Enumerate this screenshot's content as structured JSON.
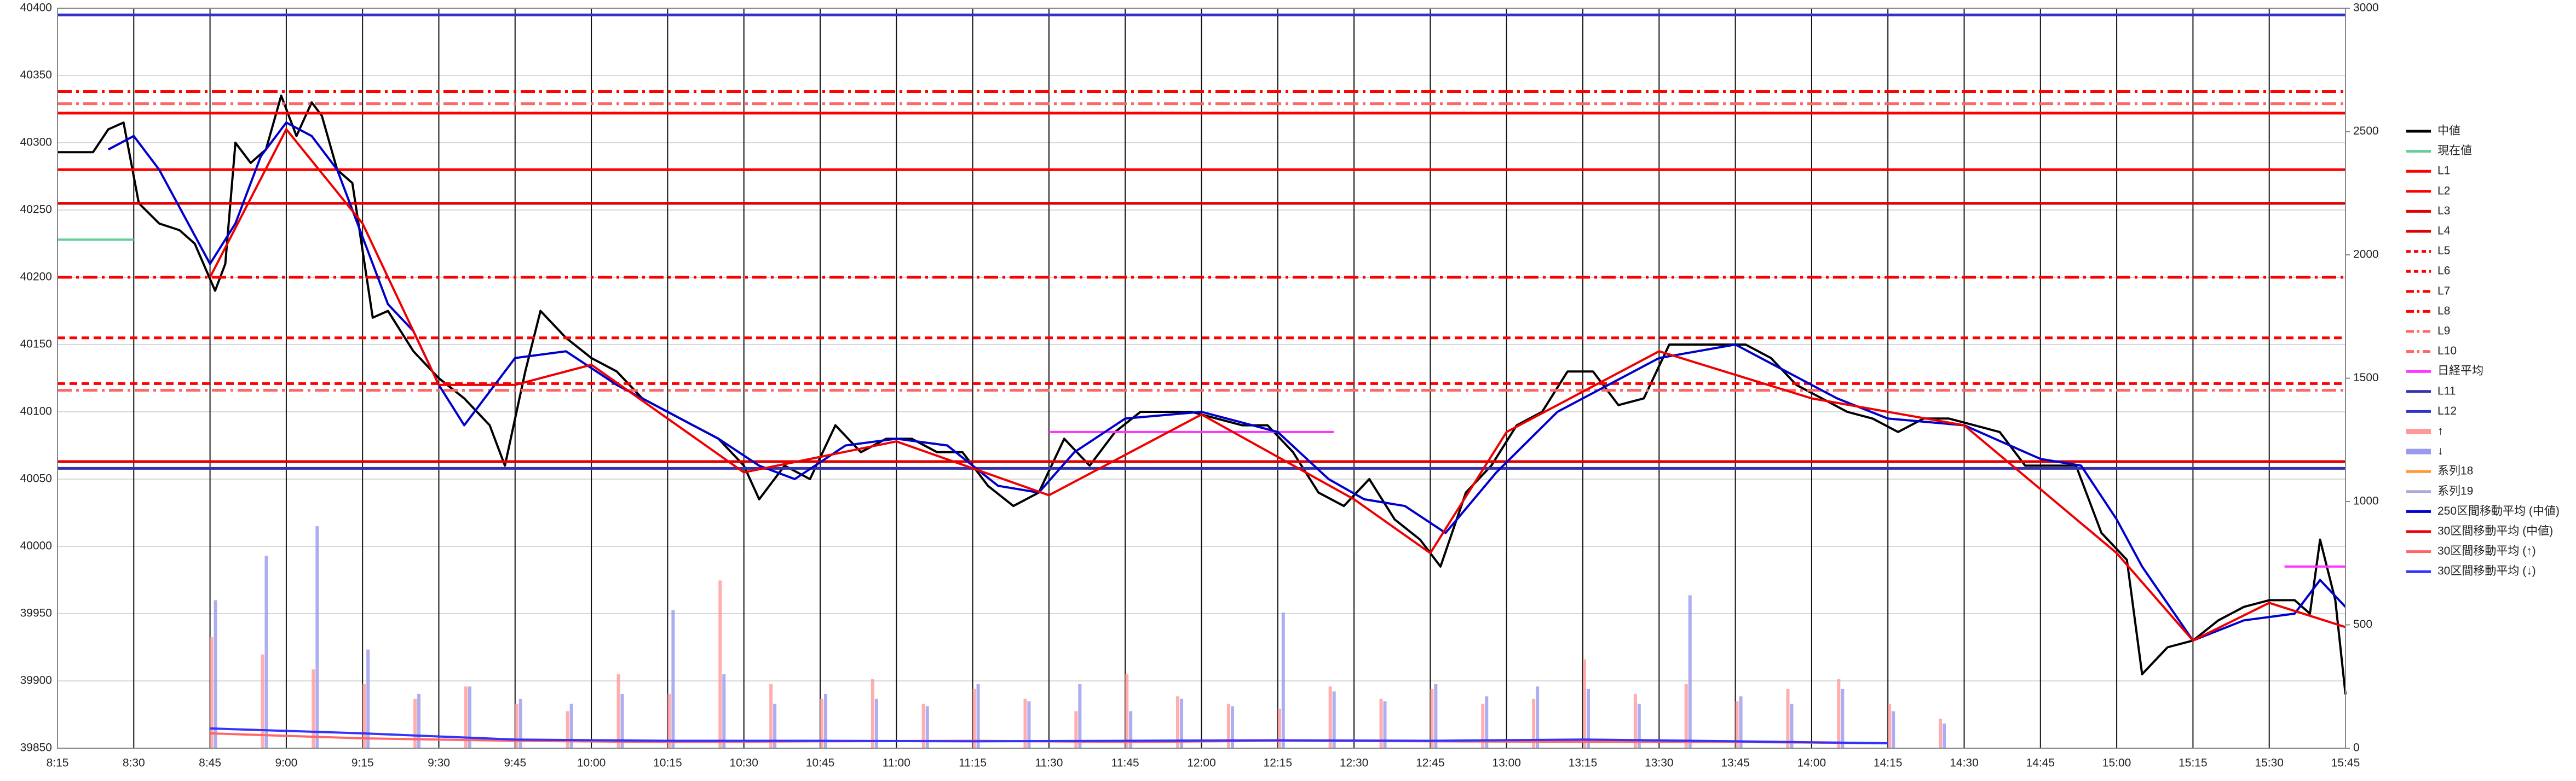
{
  "chart_data": {
    "type": "line",
    "xlim": [
      495,
      945
    ],
    "xticks": [
      {
        "value": 495,
        "label": "8:15"
      },
      {
        "value": 510,
        "label": "8:30"
      },
      {
        "value": 525,
        "label": "8:45"
      },
      {
        "value": 540,
        "label": "9:00"
      },
      {
        "value": 555,
        "label": "9:15"
      },
      {
        "value": 570,
        "label": "9:30"
      },
      {
        "value": 585,
        "label": "9:45"
      },
      {
        "value": 600,
        "label": "10:00"
      },
      {
        "value": 615,
        "label": "10:15"
      },
      {
        "value": 630,
        "label": "10:30"
      },
      {
        "value": 645,
        "label": "10:45"
      },
      {
        "value": 660,
        "label": "11:00"
      },
      {
        "value": 675,
        "label": "11:15"
      },
      {
        "value": 690,
        "label": "11:30"
      },
      {
        "value": 705,
        "label": "11:45"
      },
      {
        "value": 720,
        "label": "12:00"
      },
      {
        "value": 735,
        "label": "12:15"
      },
      {
        "value": 750,
        "label": "12:30"
      },
      {
        "value": 765,
        "label": "12:45"
      },
      {
        "value": 780,
        "label": "13:00"
      },
      {
        "value": 795,
        "label": "13:15"
      },
      {
        "value": 810,
        "label": "13:30"
      },
      {
        "value": 825,
        "label": "13:45"
      },
      {
        "value": 840,
        "label": "14:00"
      },
      {
        "value": 855,
        "label": "14:15"
      },
      {
        "value": 870,
        "label": "14:30"
      },
      {
        "value": 885,
        "label": "14:45"
      },
      {
        "value": 900,
        "label": "15:00"
      },
      {
        "value": 915,
        "label": "15:15"
      },
      {
        "value": 930,
        "label": "15:30"
      },
      {
        "value": 945,
        "label": "15:45"
      }
    ],
    "ylim": [
      39850,
      40400
    ],
    "yticks": [
      39850,
      39900,
      39950,
      40000,
      40050,
      40100,
      40150,
      40200,
      40250,
      40300,
      40350,
      40400
    ],
    "y2lim": [
      0,
      3000
    ],
    "y2ticks": [
      0,
      500,
      1000,
      1500,
      2000,
      2500,
      3000
    ],
    "grid": true,
    "legend": "right",
    "series": [
      {
        "name": "中値",
        "color": "#000000",
        "kind": "line",
        "style": "solid",
        "x": [
          495,
          502,
          505,
          508,
          511,
          515,
          519,
          522,
          526,
          528,
          530,
          533,
          536,
          539,
          542,
          545,
          547,
          550,
          553,
          555,
          557,
          560,
          565,
          570,
          575,
          580,
          583,
          587,
          590,
          595,
          600,
          605,
          610,
          615,
          620,
          625,
          630,
          633,
          638,
          643,
          648,
          653,
          658,
          663,
          668,
          673,
          678,
          683,
          688,
          693,
          698,
          703,
          708,
          713,
          718,
          723,
          728,
          733,
          738,
          743,
          748,
          753,
          758,
          763,
          767,
          772,
          777,
          782,
          787,
          792,
          797,
          802,
          807,
          812,
          817,
          822,
          827,
          832,
          837,
          842,
          847,
          852,
          857,
          862,
          867,
          872,
          877,
          882,
          887,
          892,
          897,
          902,
          905,
          910,
          915,
          920,
          925,
          930,
          935,
          938,
          940,
          943,
          945
        ],
        "values": [
          40293,
          40293,
          40310,
          40315,
          40255,
          40240,
          40235,
          40225,
          40190,
          40210,
          40300,
          40285,
          40295,
          40335,
          40305,
          40330,
          40320,
          40280,
          40270,
          40220,
          40170,
          40175,
          40145,
          40125,
          40110,
          40090,
          40060,
          40130,
          40175,
          40155,
          40140,
          40130,
          40110,
          40100,
          40090,
          40080,
          40060,
          40035,
          40060,
          40050,
          40090,
          40070,
          40080,
          40080,
          40070,
          40070,
          40045,
          40030,
          40040,
          40080,
          40060,
          40085,
          40100,
          40100,
          40100,
          40095,
          40090,
          40090,
          40070,
          40040,
          40030,
          40050,
          40020,
          40005,
          39985,
          40040,
          40060,
          40090,
          40100,
          40130,
          40130,
          40105,
          40110,
          40150,
          40150,
          40150,
          40150,
          40140,
          40120,
          40110,
          40100,
          40095,
          40085,
          40095,
          40095,
          40090,
          40085,
          40060,
          40060,
          40060,
          40010,
          39990,
          39905,
          39925,
          39930,
          39945,
          39955,
          39960,
          39960,
          39950,
          40005,
          39960,
          39890
        ]
      },
      {
        "name": "現在値",
        "color": "#66cc99",
        "kind": "line",
        "style": "solid",
        "x": [
          495,
          510
        ],
        "values": [
          40228,
          40228
        ]
      },
      {
        "name": "L1",
        "color": "#ff0000",
        "kind": "level",
        "style": "solid",
        "values": [
          40322
        ]
      },
      {
        "name": "L2",
        "color": "#ff0000",
        "kind": "level",
        "style": "solid",
        "values": [
          40280
        ]
      },
      {
        "name": "L3",
        "color": "#e00000",
        "kind": "level",
        "style": "solid",
        "values": [
          40255
        ]
      },
      {
        "name": "L4",
        "color": "#e00000",
        "kind": "level",
        "style": "solid",
        "values": [
          40063
        ]
      },
      {
        "name": "L5",
        "color": "#ff0000",
        "kind": "level",
        "style": "dash",
        "values": [
          40155
        ]
      },
      {
        "name": "L6",
        "color": "#ff0000",
        "kind": "level",
        "style": "dash",
        "values": [
          40121
        ]
      },
      {
        "name": "L7",
        "color": "#ff0000",
        "kind": "level",
        "style": "dashdot",
        "values": [
          40338
        ]
      },
      {
        "name": "L8",
        "color": "#ff0000",
        "kind": "level",
        "style": "dashdot",
        "values": [
          40200
        ]
      },
      {
        "name": "L9",
        "color": "#ff6666",
        "kind": "level",
        "style": "dashdot",
        "values": [
          40329
        ]
      },
      {
        "name": "L10",
        "color": "#ff6666",
        "kind": "level",
        "style": "dashdot",
        "values": [
          40116
        ]
      },
      {
        "name": "日経平均",
        "color": "#ff33ff",
        "kind": "line",
        "style": "solid",
        "x": [
          690,
          746,
          null,
          933,
          945
        ],
        "values": [
          40085,
          40085,
          null,
          39985,
          39985
        ]
      },
      {
        "name": "L11",
        "color": "#3333aa",
        "kind": "level",
        "style": "solid",
        "values": [
          40058
        ]
      },
      {
        "name": "L12",
        "color": "#3333cc",
        "kind": "level",
        "style": "solid",
        "values": [
          40395
        ]
      },
      {
        "name": "↑",
        "color": "#ff9999",
        "kind": "bar",
        "axis": "y2",
        "x": [
          525,
          535,
          545,
          555,
          565,
          575,
          585,
          595,
          605,
          615,
          625,
          635,
          645,
          655,
          665,
          675,
          685,
          695,
          705,
          715,
          725,
          735,
          745,
          755,
          765,
          775,
          785,
          795,
          805,
          815,
          825,
          835,
          845,
          855,
          865
        ],
        "values": [
          450,
          380,
          320,
          260,
          200,
          250,
          180,
          150,
          300,
          220,
          680,
          260,
          200,
          280,
          180,
          240,
          200,
          150,
          300,
          210,
          180,
          160,
          250,
          200,
          240,
          180,
          200,
          360,
          220,
          260,
          190,
          240,
          280,
          180,
          120
        ]
      },
      {
        "name": "↓",
        "color": "#9999ee",
        "kind": "bar",
        "axis": "y2",
        "x": [
          525,
          535,
          545,
          555,
          565,
          575,
          585,
          595,
          605,
          615,
          625,
          635,
          645,
          655,
          665,
          675,
          685,
          695,
          705,
          715,
          725,
          735,
          745,
          755,
          765,
          775,
          785,
          795,
          805,
          815,
          825,
          835,
          845,
          855,
          865
        ],
        "values": [
          600,
          780,
          900,
          400,
          220,
          250,
          200,
          180,
          220,
          560,
          300,
          180,
          220,
          200,
          170,
          260,
          190,
          260,
          150,
          200,
          170,
          550,
          230,
          190,
          260,
          210,
          250,
          240,
          180,
          620,
          210,
          180,
          240,
          150,
          100
        ]
      },
      {
        "name": "系列18",
        "color": "#ff9933",
        "kind": "none"
      },
      {
        "name": "系列19",
        "color": "#aaaadd",
        "kind": "none"
      },
      {
        "name": "250区間移動平均 (中値)",
        "color": "#0000cc",
        "kind": "line",
        "style": "solid",
        "x": [
          505,
          510,
          515,
          520,
          525,
          530,
          535,
          540,
          545,
          550,
          555,
          560,
          565,
          570,
          575,
          585,
          595,
          605,
          615,
          625,
          633,
          640,
          650,
          660,
          670,
          680,
          688,
          695,
          705,
          720,
          735,
          745,
          752,
          760,
          768,
          778,
          790,
          800,
          810,
          825,
          835,
          845,
          855,
          870,
          885,
          893,
          900,
          905,
          915,
          925,
          935,
          940,
          945
        ],
        "values": [
          40295,
          40305,
          40280,
          40245,
          40210,
          40240,
          40290,
          40315,
          40305,
          40280,
          40230,
          40180,
          40160,
          40120,
          40090,
          40140,
          40145,
          40120,
          40100,
          40080,
          40060,
          40050,
          40075,
          40080,
          40075,
          40045,
          40040,
          40070,
          40095,
          40100,
          40085,
          40050,
          40035,
          40030,
          40010,
          40055,
          40100,
          40120,
          40140,
          40150,
          40130,
          40110,
          40095,
          40090,
          40065,
          40060,
          40020,
          39985,
          39930,
          39945,
          39950,
          39975,
          39955
        ]
      },
      {
        "name": "30区間移動平均 (中値)",
        "color": "#ee0000",
        "kind": "line",
        "style": "solid",
        "x": [
          525,
          540,
          555,
          570,
          585,
          600,
          630,
          660,
          690,
          720,
          750,
          765,
          780,
          810,
          840,
          870,
          900,
          915,
          930,
          945
        ],
        "values": [
          40200,
          40310,
          40240,
          40120,
          40120,
          40135,
          40055,
          40078,
          40038,
          40098,
          40035,
          39995,
          40085,
          40145,
          40110,
          40090,
          39995,
          39930,
          39958,
          39940
        ]
      },
      {
        "name": "30区間移動平均 (↑)",
        "color": "#ff6666",
        "kind": "line",
        "style": "solid",
        "axis": "y2",
        "x": [
          525,
          555,
          585,
          615,
          645,
          675,
          705,
          735,
          765,
          795,
          825,
          855
        ],
        "values": [
          60,
          40,
          30,
          25,
          28,
          30,
          25,
          30,
          28,
          26,
          25,
          20
        ]
      },
      {
        "name": "30区間移動平均 (↓)",
        "color": "#3333ff",
        "kind": "line",
        "style": "solid",
        "axis": "y2",
        "x": [
          525,
          555,
          585,
          615,
          645,
          675,
          705,
          735,
          765,
          795,
          825,
          855
        ],
        "values": [
          80,
          60,
          35,
          30,
          30,
          28,
          30,
          32,
          30,
          35,
          28,
          20
        ]
      }
    ]
  }
}
